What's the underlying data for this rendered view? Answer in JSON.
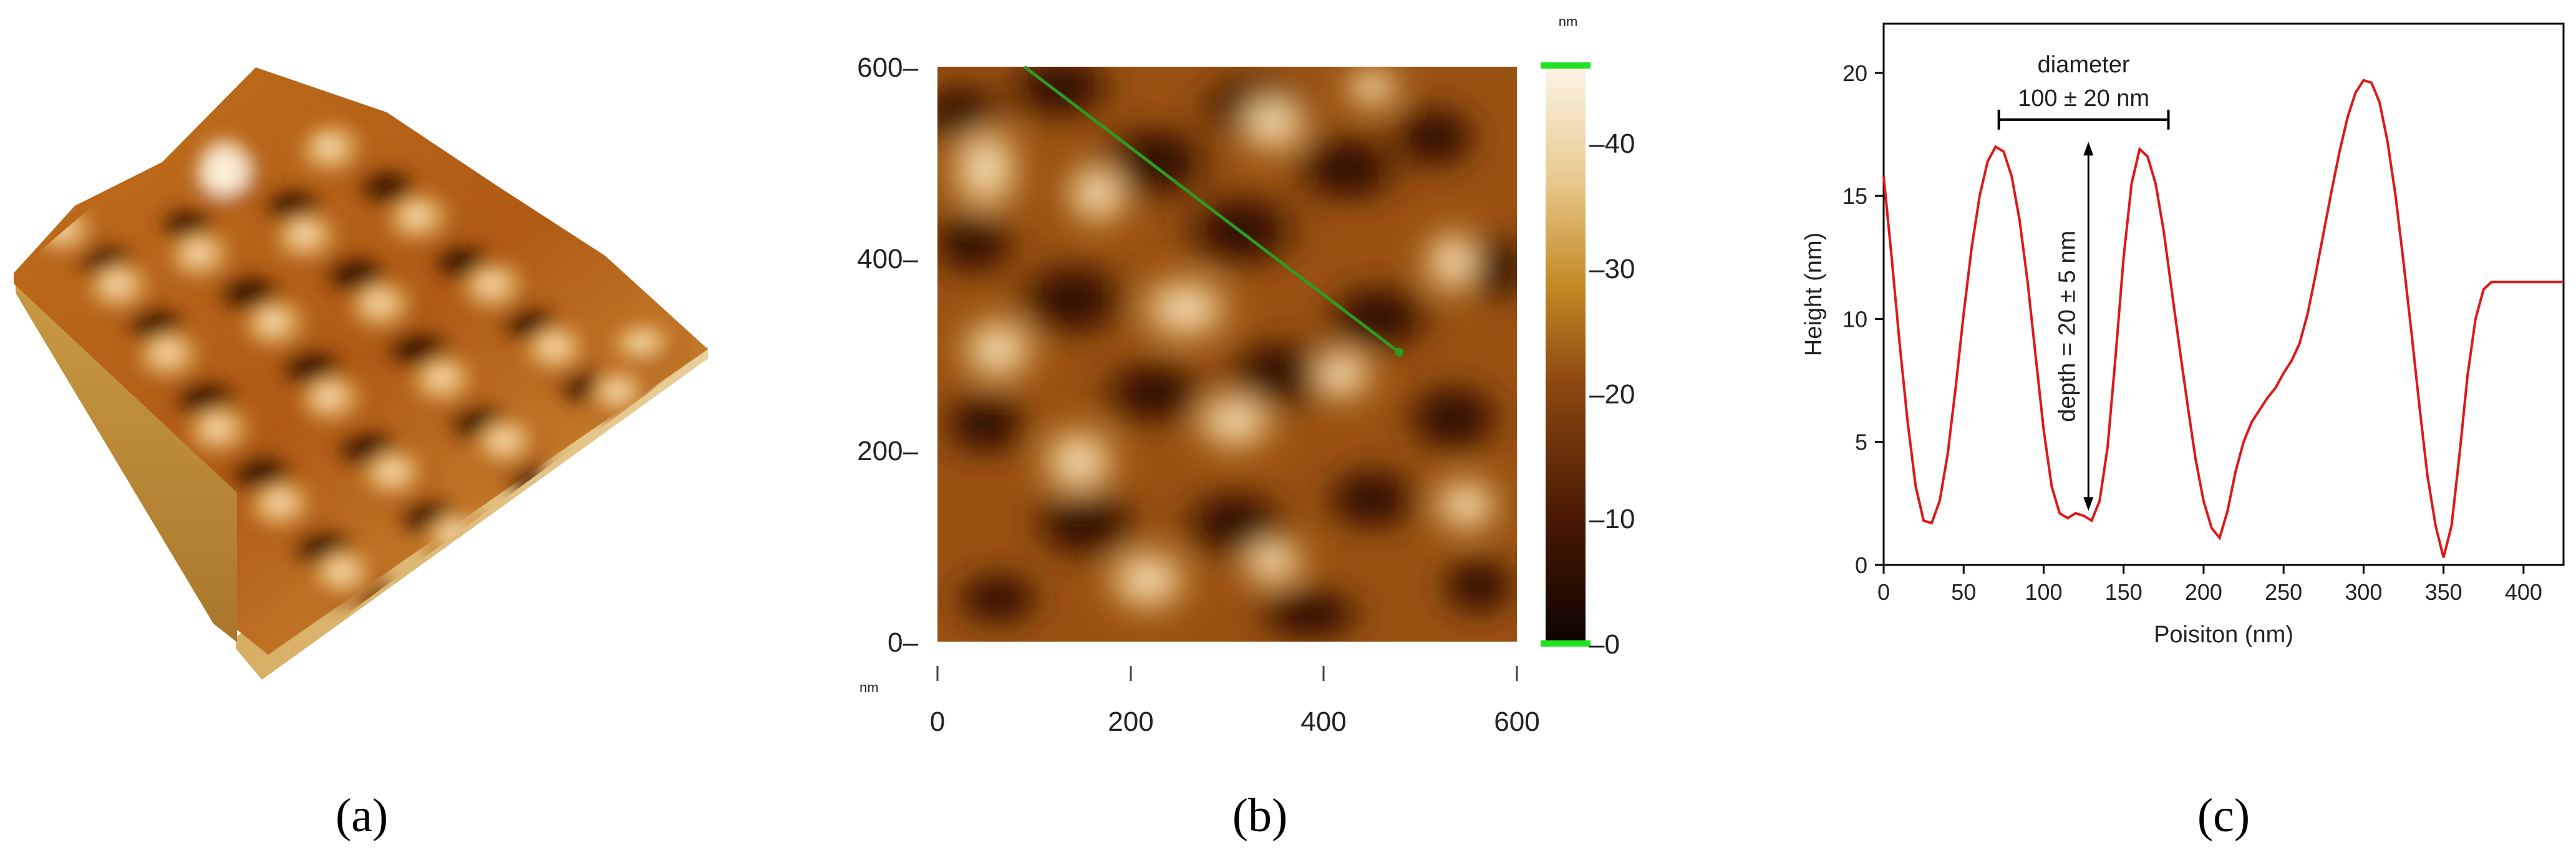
{
  "panels": {
    "a": {
      "label": "(a)"
    },
    "b": {
      "label": "(b)"
    },
    "c": {
      "label": "(c)"
    }
  },
  "colors": {
    "profile_line": "#e01818",
    "scan_line": "#2e9a22",
    "colorbar_marker": "#22e022",
    "afm_dark": "#1a0700",
    "afm_mid": "#a55c10",
    "afm_light": "#f6ead4"
  },
  "icons": [
    "afm-3d-surface-image",
    "afm-height-map-image"
  ],
  "map": {
    "unit_x": "nm",
    "unit_bar": "nm",
    "x_ticks": [
      "0",
      "200",
      "400",
      "600"
    ],
    "y_ticks": [
      "0–",
      "200–",
      "400–",
      "600–"
    ],
    "colorbar_ticks": [
      "–0",
      "–10",
      "–20",
      "–30",
      "–40"
    ],
    "scan_line": {
      "x1": 90,
      "y1": 600,
      "x2": 478,
      "y2": 302
    }
  },
  "chart_data": [
    {
      "type": "heatmap",
      "panel": "b",
      "xlabel": "nm",
      "ylabel": "",
      "xlim": [
        0,
        600
      ],
      "ylim": [
        0,
        600
      ],
      "x_ticks": [
        0,
        200,
        400,
        600
      ],
      "y_ticks": [
        0,
        200,
        400,
        600
      ],
      "colorbar": {
        "unit": "nm",
        "range": [
          0,
          46
        ],
        "ticks": [
          0,
          10,
          20,
          30,
          40
        ]
      },
      "line_profile": {
        "x1": 90,
        "y1": 600,
        "x2": 478,
        "y2": 302
      }
    },
    {
      "type": "line",
      "panel": "c",
      "xlabel": "Poisiton (nm)",
      "ylabel": "Height (nm)",
      "xlim": [
        0,
        425
      ],
      "ylim": [
        0,
        22
      ],
      "x_ticks": [
        0,
        50,
        100,
        150,
        200,
        250,
        300,
        350,
        400
      ],
      "y_ticks": [
        0,
        5,
        10,
        15,
        20
      ],
      "series": [
        {
          "x": [
            0,
            5,
            10,
            15,
            20,
            25,
            30,
            35,
            40,
            45,
            50,
            55,
            60,
            65,
            70,
            75,
            80,
            85,
            90,
            95,
            100,
            105,
            110,
            115,
            120,
            125,
            130,
            135,
            140,
            145,
            150,
            155,
            160,
            165,
            170,
            175,
            180,
            185,
            190,
            195,
            200,
            205,
            210,
            215,
            220,
            225,
            230,
            235,
            240,
            245,
            250,
            255,
            260,
            265,
            270,
            275,
            280,
            285,
            290,
            295,
            300,
            305,
            310,
            315,
            320,
            325,
            330,
            335,
            340,
            345,
            350,
            355,
            360,
            365,
            370,
            375,
            380,
            385,
            390,
            395,
            400,
            405,
            410,
            415,
            420,
            425
          ],
          "y": [
            15.8,
            12.5,
            9.0,
            5.8,
            3.2,
            1.8,
            1.7,
            2.6,
            4.5,
            7.2,
            10.2,
            12.9,
            15.0,
            16.4,
            17.0,
            16.8,
            15.8,
            14.0,
            11.5,
            8.5,
            5.5,
            3.2,
            2.1,
            1.9,
            2.1,
            2.0,
            1.8,
            2.6,
            4.8,
            8.5,
            12.5,
            15.5,
            16.9,
            16.6,
            15.5,
            13.6,
            11.2,
            8.8,
            6.5,
            4.3,
            2.6,
            1.5,
            1.1,
            2.2,
            3.8,
            5.0,
            5.8,
            6.3,
            6.8,
            7.2,
            7.8,
            8.3,
            9.0,
            10.2,
            11.8,
            13.5,
            15.2,
            16.8,
            18.2,
            19.2,
            19.7,
            19.6,
            18.8,
            17.2,
            15.0,
            12.3,
            9.4,
            6.4,
            3.6,
            1.6,
            0.3,
            1.6,
            4.5,
            7.7,
            10.0,
            11.2,
            11.5,
            11.5,
            11.5,
            11.5,
            11.5,
            11.5,
            11.5,
            11.5,
            11.5,
            11.5
          ]
        }
      ],
      "annotations": {
        "diameter_title": "diameter",
        "diameter_value": "100 ± 20 nm",
        "diameter_from": 72,
        "diameter_to": 178,
        "diameter_height": 18.1,
        "depth_label": "depth = 20 ± 5 nm",
        "depth_x": 128,
        "depth_from": 2.2,
        "depth_to": 17.2
      }
    }
  ]
}
